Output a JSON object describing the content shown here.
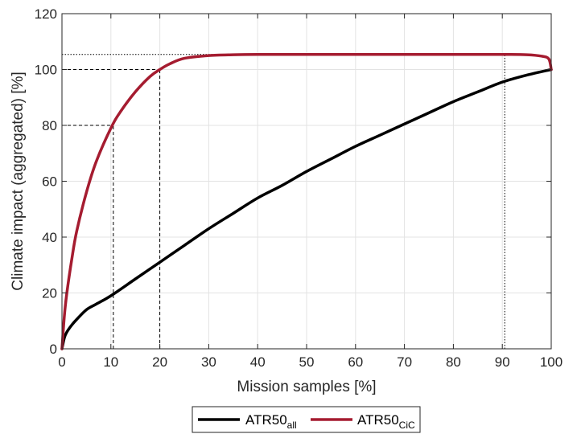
{
  "chart_data": {
    "type": "line",
    "title": "",
    "xlabel": "Mission samples [%]",
    "ylabel": "Climate impact (aggregated) [%]",
    "xlim": [
      0,
      100
    ],
    "ylim": [
      0,
      120
    ],
    "xticks": [
      0,
      10,
      20,
      30,
      40,
      50,
      60,
      70,
      80,
      90,
      100
    ],
    "yticks": [
      0,
      20,
      40,
      60,
      80,
      100,
      120
    ],
    "grid": true,
    "legend_position": "bottom-outside",
    "series": [
      {
        "name": "ATR50",
        "subscript": "all",
        "color": "#000000",
        "x": [
          0,
          0.5,
          1,
          2,
          3,
          5,
          7,
          10,
          15,
          20,
          25,
          30,
          35,
          40,
          45,
          50,
          55,
          60,
          65,
          70,
          75,
          80,
          85,
          90,
          95,
          100
        ],
        "y": [
          0,
          4,
          6,
          8.5,
          10.5,
          14,
          16,
          19,
          25,
          31,
          37,
          43,
          48.5,
          54,
          58.5,
          63.5,
          68,
          72.5,
          76.5,
          80.5,
          84.5,
          88.5,
          92,
          95.5,
          98,
          100
        ]
      },
      {
        "name": "ATR50",
        "subscript": "CiC",
        "color": "#a51c30",
        "x": [
          0,
          0.5,
          1,
          2,
          3,
          5,
          7,
          10,
          12,
          15,
          18,
          20,
          22,
          25,
          30,
          35,
          40,
          50,
          60,
          70,
          80,
          90,
          95,
          98,
          99.5,
          100
        ],
        "y": [
          0,
          12,
          20,
          32,
          42,
          56,
          67,
          79,
          85,
          92,
          97.5,
          100,
          102,
          104,
          105,
          105.3,
          105.4,
          105.4,
          105.4,
          105.4,
          105.4,
          105.4,
          105.3,
          104.8,
          103.8,
          100
        ]
      }
    ],
    "reference_lines": [
      {
        "style": "dashed",
        "x": 10.5,
        "y": 80
      },
      {
        "style": "dashed",
        "x": 20,
        "y": 100
      },
      {
        "style": "dotted",
        "x": 90.5,
        "y": 105.4
      }
    ]
  }
}
